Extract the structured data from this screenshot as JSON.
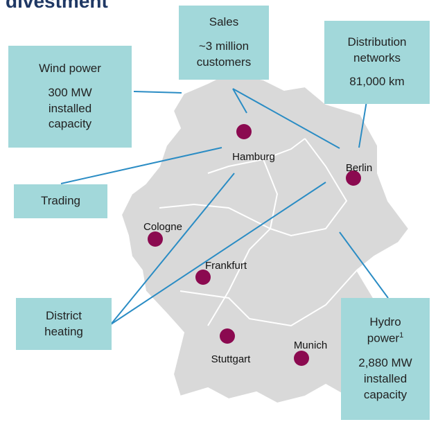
{
  "title": "divestment",
  "boxes": {
    "wind": {
      "title": "Wind power",
      "detail": "300 MW installed capacity"
    },
    "sales": {
      "title": "Sales",
      "detail": "~3 million customers"
    },
    "distribution": {
      "title": "Distribution networks",
      "detail": "81,000 km"
    },
    "trading": {
      "title": "Trading"
    },
    "district": {
      "title": "District heating"
    },
    "hydro": {
      "title": "Hydro power",
      "footnote": "1",
      "detail": "2,880 MW installed capacity"
    }
  },
  "cities": [
    "Hamburg",
    "Berlin",
    "Cologne",
    "Frankfurt",
    "Stuttgart",
    "Munich"
  ]
}
